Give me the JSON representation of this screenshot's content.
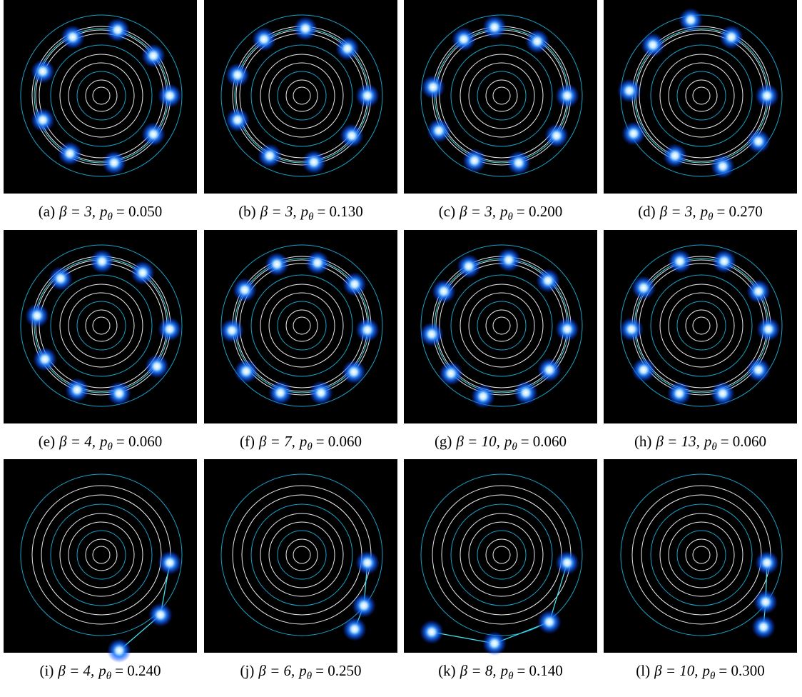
{
  "figure": {
    "panels": [
      {
        "label": "(a)",
        "beta": "β = 3,",
        "p": "p",
        "sub": "θ",
        "value": "= 0.050"
      },
      {
        "label": "(b)",
        "beta": "β = 3,",
        "p": "p",
        "sub": "θ",
        "value": "= 0.130"
      },
      {
        "label": "(c)",
        "beta": "β = 3,",
        "p": "p",
        "sub": "θ",
        "value": "= 0.200"
      },
      {
        "label": "(d)",
        "beta": "β = 3,",
        "p": "p",
        "sub": "θ",
        "value": "= 0.270"
      },
      {
        "label": "(e)",
        "beta": "β = 4,",
        "p": "p",
        "sub": "θ",
        "value": "= 0.060"
      },
      {
        "label": "(f)",
        "beta": "β = 7,",
        "p": "p",
        "sub": "θ",
        "value": "= 0.060"
      },
      {
        "label": "(g)",
        "beta": "β = 10,",
        "p": "p",
        "sub": "θ",
        "value": "= 0.060"
      },
      {
        "label": "(h)",
        "beta": "β = 13,",
        "p": "p",
        "sub": "θ",
        "value": "= 0.060"
      },
      {
        "label": "(i)",
        "beta": "β = 4,",
        "p": "p",
        "sub": "θ",
        "value": "= 0.240"
      },
      {
        "label": "(j)",
        "beta": "β = 6,",
        "p": "p",
        "sub": "θ",
        "value": "= 0.250"
      },
      {
        "label": "(k)",
        "beta": "β = 8,",
        "p": "p",
        "sub": "θ",
        "value": "= 0.140"
      },
      {
        "label": "(l)",
        "beta": "β = 10,",
        "p": "p",
        "sub": "θ",
        "value": "= 0.300"
      }
    ]
  }
}
